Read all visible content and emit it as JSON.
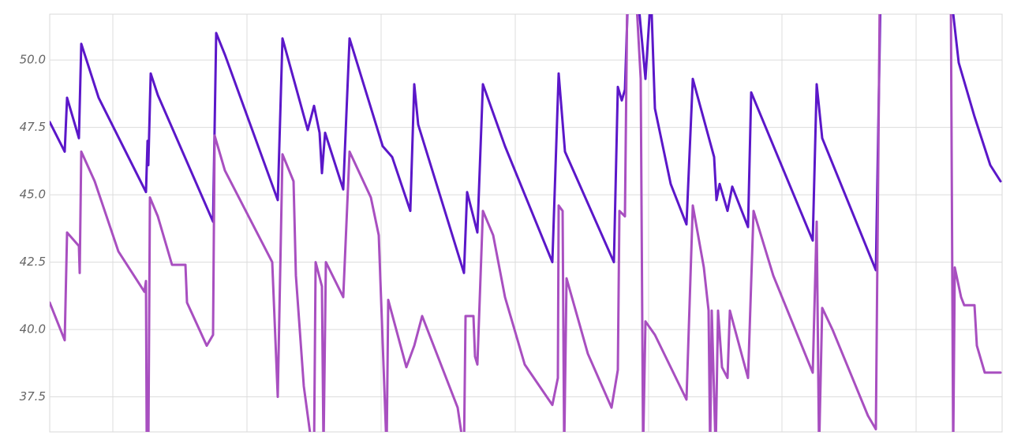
{
  "chart_data": {
    "type": "line",
    "xlim": [
      0,
      1207
    ],
    "xticks": [
      80,
      250,
      420,
      590,
      759,
      928,
      1098
    ],
    "ylim": [
      36.2,
      51.7
    ],
    "yticks": [
      37.5,
      {
        "value": 40,
        "label": "40.0"
      },
      42.5,
      {
        "value": 45,
        "label": "45.0"
      },
      47.5,
      {
        "value": 50,
        "label": "50.0"
      }
    ],
    "grid": true,
    "series": [
      {
        "color": "#5b17c9",
        "x": [
          0,
          19,
          22,
          37,
          40,
          62,
          122,
          124,
          125,
          128,
          137,
          207,
          211,
          222,
          289,
          295,
          327,
          335,
          342,
          345,
          349,
          372,
          380,
          422,
          434,
          457,
          462,
          467,
          525,
          529,
          542,
          549,
          577,
          637,
          645,
          653,
          715,
          720,
          725,
          729,
          733,
          745,
          755,
          762,
          767,
          787,
          807,
          815,
          842,
          845,
          849,
          859,
          865,
          885,
          889,
          967,
          972,
          979,
          1047,
          1053,
          1100,
          1142,
          1152,
          1172,
          1192,
          1205
        ],
        "values": [
          47.7,
          46.6,
          48.6,
          47.1,
          50.6,
          48.6,
          45.1,
          47.0,
          46.1,
          49.5,
          48.7,
          44.0,
          51.0,
          50.2,
          44.8,
          50.8,
          47.4,
          48.3,
          47.3,
          45.8,
          47.3,
          45.2,
          50.8,
          46.8,
          46.4,
          44.4,
          49.1,
          47.6,
          42.1,
          45.1,
          43.6,
          49.1,
          46.8,
          42.5,
          49.5,
          46.6,
          42.5,
          49.0,
          48.5,
          48.9,
          52.5,
          52.5,
          49.3,
          52.5,
          48.2,
          45.4,
          43.9,
          49.3,
          46.4,
          44.8,
          45.4,
          44.4,
          45.3,
          43.8,
          48.8,
          43.3,
          49.1,
          47.1,
          42.2,
          52.5,
          null,
          52.5,
          49.9,
          47.9,
          46.1,
          45.5
        ]
      },
      {
        "color": "#a84fc0",
        "x": [
          0,
          19,
          22,
          37,
          38,
          40,
          57,
          87,
          120,
          122,
          123,
          125,
          127,
          137,
          155,
          172,
          174,
          199,
          207,
          209,
          222,
          282,
          289,
          295,
          309,
          312,
          322,
          333,
          335,
          337,
          345,
          347,
          350,
          372,
          380,
          407,
          417,
          427,
          429,
          452,
          462,
          472,
          517,
          525,
          527,
          537,
          539,
          542,
          549,
          562,
          577,
          602,
          637,
          644,
          645,
          650,
          652,
          655,
          682,
          712,
          720,
          722,
          729,
          732,
          743,
          749,
          752,
          755,
          767,
          807,
          815,
          829,
          835,
          837,
          839,
          844,
          847,
          852,
          859,
          862,
          885,
          892,
          917,
          967,
          972,
          975,
          979,
          992,
          1037,
          1047,
          1052,
          1100,
          1142,
          1145,
          1147,
          1155,
          1159,
          1172,
          1175,
          1185,
          1205
        ],
        "values": [
          41.0,
          39.6,
          43.6,
          43.1,
          42.1,
          46.6,
          45.5,
          42.9,
          41.4,
          41.8,
          35.5,
          35.5,
          44.9,
          44.2,
          42.4,
          42.4,
          41.0,
          39.4,
          39.8,
          47.2,
          45.9,
          42.5,
          37.5,
          46.5,
          45.5,
          42.0,
          37.9,
          35.5,
          35.5,
          42.5,
          41.6,
          35.5,
          42.5,
          41.2,
          46.6,
          44.9,
          43.5,
          35.5,
          41.1,
          38.6,
          39.4,
          40.5,
          37.1,
          35.5,
          40.5,
          40.5,
          39.0,
          38.7,
          44.4,
          43.5,
          41.2,
          38.7,
          37.2,
          38.2,
          44.6,
          44.4,
          35.5,
          41.9,
          39.1,
          37.1,
          38.5,
          44.4,
          44.2,
          52.5,
          52.5,
          49.3,
          35.5,
          40.3,
          39.8,
          37.4,
          44.6,
          42.3,
          40.7,
          35.5,
          40.7,
          35.5,
          40.7,
          38.6,
          38.2,
          40.7,
          38.2,
          44.4,
          42.0,
          38.4,
          44.0,
          35.5,
          40.8,
          40.0,
          36.8,
          36.3,
          52.5,
          null,
          52.5,
          35.5,
          42.3,
          41.2,
          40.9,
          40.9,
          39.4,
          38.4,
          38.4
        ]
      }
    ]
  }
}
